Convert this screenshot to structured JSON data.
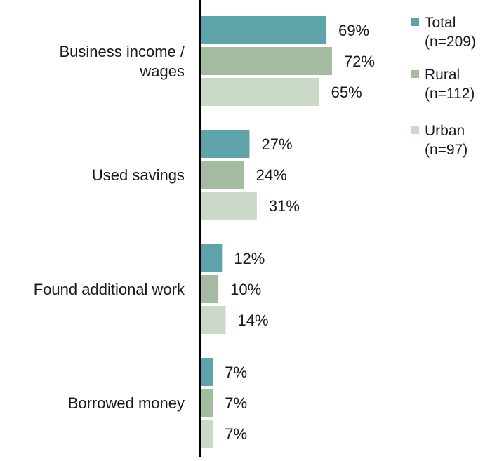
{
  "chart_data": {
    "type": "bar",
    "orientation": "horizontal",
    "categories": [
      "Business income / wages",
      "Used savings",
      "Found additional work",
      "Borrowed money"
    ],
    "category_label_lines": [
      [
        "Business income /",
        "wages"
      ],
      [
        "Used savings"
      ],
      [
        "Found additional work"
      ],
      [
        "Borrowed money"
      ]
    ],
    "series": [
      {
        "name": "Total (n=209)",
        "legend_lines": [
          "Total",
          "(n=209)"
        ],
        "color": "#5fa4ab",
        "values": [
          69,
          27,
          12,
          7
        ]
      },
      {
        "name": "Rural (n=112)",
        "legend_lines": [
          "Rural",
          "(n=112)"
        ],
        "color": "#a3bb9e",
        "values": [
          72,
          24,
          10,
          7
        ]
      },
      {
        "name": "Urban (n=97)",
        "legend_lines": [
          "Urban",
          "(n=97)"
        ],
        "color": "#cad9c8",
        "values": [
          65,
          31,
          14,
          7
        ]
      }
    ],
    "value_suffix": "%",
    "xlim": [
      0,
      100
    ],
    "grid": false,
    "legend_position": "top-right",
    "title": "",
    "xlabel": "",
    "ylabel": ""
  }
}
